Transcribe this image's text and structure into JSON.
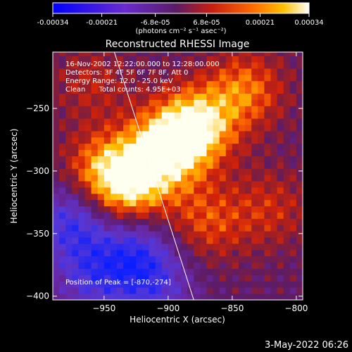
{
  "colorbar": {
    "tick_labels": [
      "-0.00034",
      "-0.00021",
      "-6.8e-05",
      "6.8e-05",
      "0.00021",
      "0.00034"
    ],
    "tick_values": [
      -0.00034,
      -0.00021,
      -6.8e-05,
      6.8e-05,
      0.00021,
      0.00034
    ],
    "range": [
      -0.00034,
      0.00034
    ],
    "unit_label": "(photons cm⁻² s⁻¹ asec⁻²)"
  },
  "chart_data": {
    "type": "heatmap",
    "title": "Reconstructed RHESSI Image",
    "xlabel": "Heliocentric X (arcsec)",
    "ylabel": "Heliocentric Y (arcsec)",
    "xlim": [
      -990,
      -795
    ],
    "ylim": [
      -403,
      -205
    ],
    "xticks": [
      -950,
      -900,
      -850,
      -800
    ],
    "yticks": [
      -250,
      -300,
      -350,
      -400
    ],
    "xtick_labels": [
      "−950",
      "−900",
      "−850",
      "−800"
    ],
    "ytick_labels": [
      "−250",
      "−300",
      "−350",
      "−400"
    ],
    "limb_line": [
      [
        -942,
        -205
      ],
      [
        -880,
        -403
      ]
    ],
    "bright_regions": [
      {
        "x": -880,
        "y": -265,
        "intensity": 0.00034
      },
      {
        "x": -905,
        "y": -285,
        "intensity": 0.00028
      },
      {
        "x": -930,
        "y": -315,
        "intensity": 0.00024
      },
      {
        "x": -950,
        "y": -300,
        "intensity": 0.00022
      },
      {
        "x": -840,
        "y": -235,
        "intensity": 0.0002
      },
      {
        "x": -820,
        "y": -330,
        "intensity": 0.00012
      },
      {
        "x": -870,
        "y": -340,
        "intensity": 0.00016
      },
      {
        "x": -960,
        "y": -230,
        "intensity": 0.0001
      }
    ],
    "dark_regions": [
      {
        "x": -975,
        "y": -340,
        "intensity": -0.00024
      },
      {
        "x": -925,
        "y": -365,
        "intensity": -0.00022
      },
      {
        "x": -960,
        "y": -385,
        "intensity": -0.00018
      },
      {
        "x": -910,
        "y": -395,
        "intensity": -0.00016
      }
    ]
  },
  "annotations": {
    "time_range": "16-Nov-2002 12:22:00.000 to 12:28:00.000",
    "detectors": "Detectors: 3F 4F 5F 6F 7F 8F, Att 0",
    "energy": "Energy Range: 12.0 - 25.0 keV",
    "method": "Clean      Total counts: 4.95E+03",
    "peak": "Position of Peak = [-870,-274]"
  },
  "footer": {
    "timestamp": "3-May-2022 06:26"
  }
}
